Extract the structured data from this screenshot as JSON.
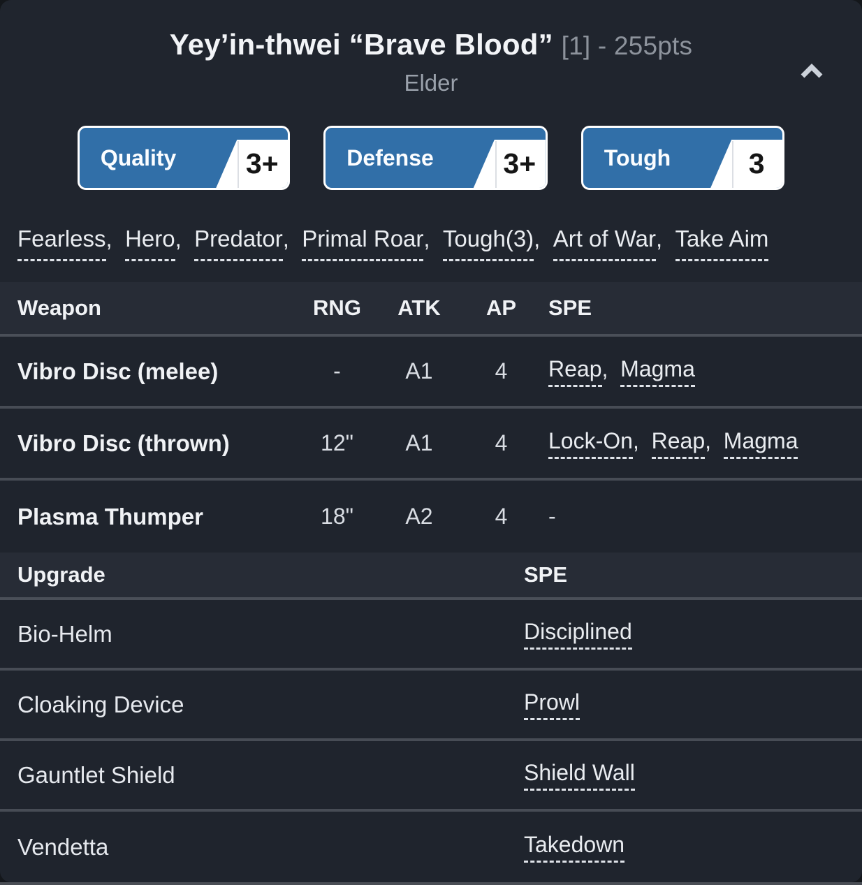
{
  "header": {
    "title": "Yey’in-thwei “Brave Blood”",
    "title_suffix": "[1] - 255pts",
    "subtitle": "Elder"
  },
  "stats": [
    {
      "label": "Quality",
      "value": "3+"
    },
    {
      "label": "Defense",
      "value": "3+"
    },
    {
      "label": "Tough",
      "value": "3"
    }
  ],
  "special_rules": [
    "Fearless",
    "Hero",
    "Predator",
    "Primal Roar",
    "Tough(3)",
    "Art of War",
    "Take Aim"
  ],
  "dash": "-",
  "weapons_table": {
    "columns": [
      "Weapon",
      "RNG",
      "ATK",
      "AP",
      "SPE"
    ],
    "rows": [
      {
        "name": "Vibro Disc (melee)",
        "rng": "-",
        "atk": "A1",
        "ap": "4",
        "spe": [
          "Reap",
          "Magma"
        ]
      },
      {
        "name": "Vibro Disc (thrown)",
        "rng": "12\"",
        "atk": "A1",
        "ap": "4",
        "spe": [
          "Lock-On",
          "Reap",
          "Magma"
        ]
      },
      {
        "name": "Plasma Thumper",
        "rng": "18\"",
        "atk": "A2",
        "ap": "4",
        "spe": []
      }
    ]
  },
  "upgrades_table": {
    "columns": [
      "Upgrade",
      "SPE"
    ],
    "rows": [
      {
        "name": "Bio-Helm",
        "spe": "Disciplined"
      },
      {
        "name": "Cloaking Device",
        "spe": "Prowl"
      },
      {
        "name": "Gauntlet Shield",
        "spe": "Shield Wall"
      },
      {
        "name": "Vendetta",
        "spe": "Takedown"
      }
    ]
  },
  "colors": {
    "accent_blue": "#316fa8",
    "card_bg": "#20252e",
    "header_row_bg": "#272c36",
    "row_bg": "#1f242d",
    "separator": "#4a4f58",
    "text_primary": "#f2f4f7",
    "text_muted": "#8d939c",
    "bottom_strip": "#4a4e55"
  }
}
